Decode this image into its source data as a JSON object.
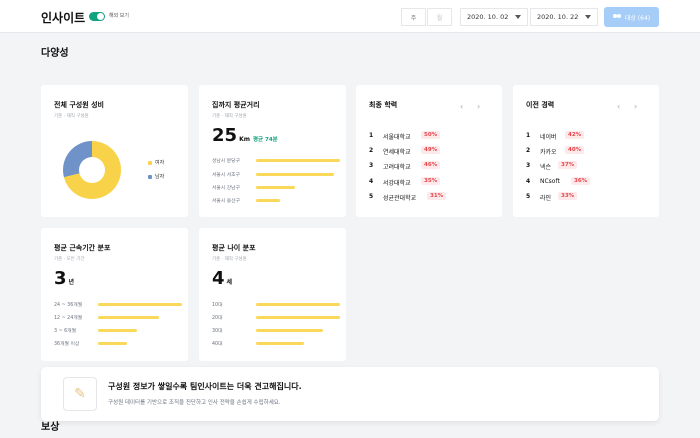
{
  "header": {
    "title": "인사이트",
    "toggle_label": "해외 보기",
    "segments": [
      "주",
      "월"
    ],
    "date_start": "2020. 10. 02",
    "date_end": "2020. 10. 22",
    "target_button": "대상 (64)"
  },
  "sections": {
    "diversity": "다양성",
    "compensation": "보상"
  },
  "gender": {
    "title": "전체 구성원 성비",
    "subtitle": "기준 · 재직 구성원",
    "legend": [
      {
        "label": "여자",
        "color": "#f8d34a",
        "share": 0.71
      },
      {
        "label": "남자",
        "color": "#6f93c9",
        "share": 0.29
      }
    ]
  },
  "commute": {
    "title": "집까지 평균거리",
    "subtitle": "기준 · 재직 구성원",
    "value": "25",
    "unit": "Km",
    "note": "평균 74분",
    "bars": [
      {
        "label": "성남시 분당구",
        "fraction": 1.0
      },
      {
        "label": "서울시 서초구",
        "fraction": 0.93
      },
      {
        "label": "서울시 강남구",
        "fraction": 0.46
      },
      {
        "label": "서울시 용산구",
        "fraction": 0.28
      }
    ]
  },
  "education": {
    "title": "최종 학력",
    "items": [
      {
        "rank": "1",
        "name": "서울대학교",
        "pct": "50%"
      },
      {
        "rank": "2",
        "name": "연세대학교",
        "pct": "49%"
      },
      {
        "rank": "3",
        "name": "고려대학교",
        "pct": "46%"
      },
      {
        "rank": "4",
        "name": "서강대학교",
        "pct": "35%"
      },
      {
        "rank": "5",
        "name": "성균관대학교",
        "pct": "31%"
      }
    ]
  },
  "career": {
    "title": "이전 경력",
    "items": [
      {
        "rank": "1",
        "name": "네이버",
        "pct": "42%"
      },
      {
        "rank": "2",
        "name": "카카오",
        "pct": "40%"
      },
      {
        "rank": "3",
        "name": "넥슨",
        "pct": "37%"
      },
      {
        "rank": "4",
        "name": "NCsoft",
        "pct": "36%"
      },
      {
        "rank": "5",
        "name": "라인",
        "pct": "33%"
      }
    ]
  },
  "tenure": {
    "title": "평균 근속기간 분포",
    "subtitle": "기준 · 모든 기간",
    "value": "3",
    "unit": "년",
    "bars": [
      {
        "label": "24 ~ 36개월",
        "fraction": 1.0
      },
      {
        "label": "12 ~ 24개월",
        "fraction": 0.73
      },
      {
        "label": "3 ~ 6개월",
        "fraction": 0.47
      },
      {
        "label": "36개월 이상",
        "fraction": 0.35
      }
    ]
  },
  "age": {
    "title": "평균 나이 분포",
    "subtitle": "기준 · 재직 구성원",
    "value": "4",
    "unit": "세",
    "bars": [
      {
        "label": "10대",
        "fraction": 1.0
      },
      {
        "label": "20대",
        "fraction": 1.0
      },
      {
        "label": "30대",
        "fraction": 0.8
      },
      {
        "label": "40대",
        "fraction": 0.57
      }
    ]
  },
  "banner": {
    "icon": "flexed-arm-icon",
    "title": "구성원 정보가 쌓일수록 팀인사이트는 더욱 견고해집니다.",
    "subtitle": "구성원 데이터를 기반으로 조직을 진단하고 인사 전략을 손쉽게 수립하세요."
  }
}
